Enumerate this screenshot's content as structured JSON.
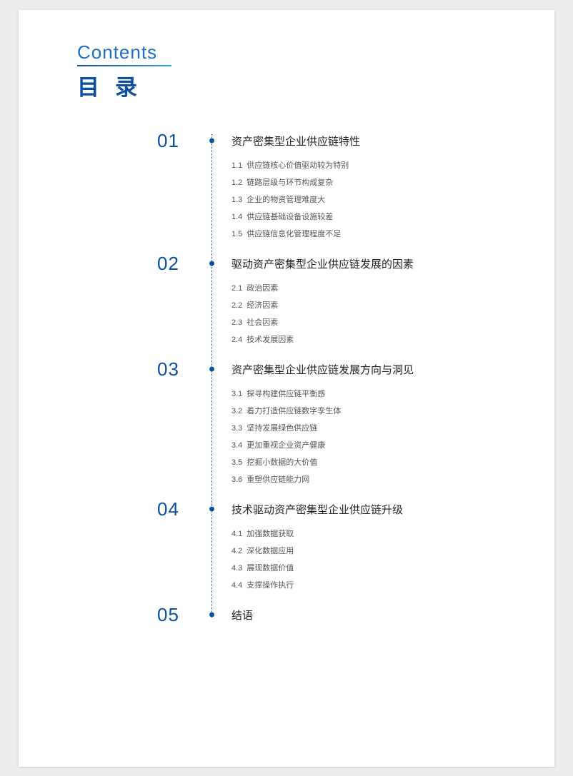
{
  "colors": {
    "page_bg": "#eceeef",
    "paper_bg": "#ffffff",
    "primary_blue": "#0a4fa0",
    "accent_blue": "#1f6fc2",
    "gradient_end": "#2aa8e0",
    "title_text": "#222222",
    "sub_text": "#555555"
  },
  "typography": {
    "header_en_size": 26,
    "header_zh_size": 31,
    "section_num_size": 26,
    "section_title_size": 15,
    "sub_size": 11,
    "header_zh_letter_spacing": 22
  },
  "header": {
    "en": "Contents",
    "zh": "目录"
  },
  "sections": [
    {
      "num": "01",
      "title": "资产密集型企业供应链特性",
      "subs": [
        {
          "n": "1.1",
          "t": "供应链核心价值驱动较为特别"
        },
        {
          "n": "1.2",
          "t": "链路层级与环节构成复杂"
        },
        {
          "n": "1.3",
          "t": "企业的物资管理难度大"
        },
        {
          "n": "1.4",
          "t": "供应链基础设备设施较差"
        },
        {
          "n": "1.5",
          "t": "供应链信息化管理程度不足"
        }
      ]
    },
    {
      "num": "02",
      "title": "驱动资产密集型企业供应链发展的因素",
      "subs": [
        {
          "n": "2.1",
          "t": "政治因素"
        },
        {
          "n": "2.2",
          "t": "经济因素"
        },
        {
          "n": "2.3",
          "t": "社会因素"
        },
        {
          "n": "2.4",
          "t": "技术发展因素"
        }
      ]
    },
    {
      "num": "03",
      "title": "资产密集型企业供应链发展方向与洞见",
      "subs": [
        {
          "n": "3.1",
          "t": "探寻构建供应链平衡感"
        },
        {
          "n": "3.2",
          "t": "着力打造供应链数字孪生体"
        },
        {
          "n": "3.3",
          "t": "坚持发展绿色供应链"
        },
        {
          "n": "3.4",
          "t": "更加重视企业资产健康"
        },
        {
          "n": "3.5",
          "t": "挖掘小数据的大价值"
        },
        {
          "n": "3.6",
          "t": "重塑供应链能力网"
        }
      ]
    },
    {
      "num": "04",
      "title": "技术驱动资产密集型企业供应链升级",
      "subs": [
        {
          "n": "4.1",
          "t": "加强数据获取"
        },
        {
          "n": "4.2",
          "t": "深化数据应用"
        },
        {
          "n": "4.3",
          "t": "展现数据价值"
        },
        {
          "n": "4.4",
          "t": "支撑操作执行"
        }
      ]
    },
    {
      "num": "05",
      "title": "结语",
      "subs": []
    }
  ]
}
